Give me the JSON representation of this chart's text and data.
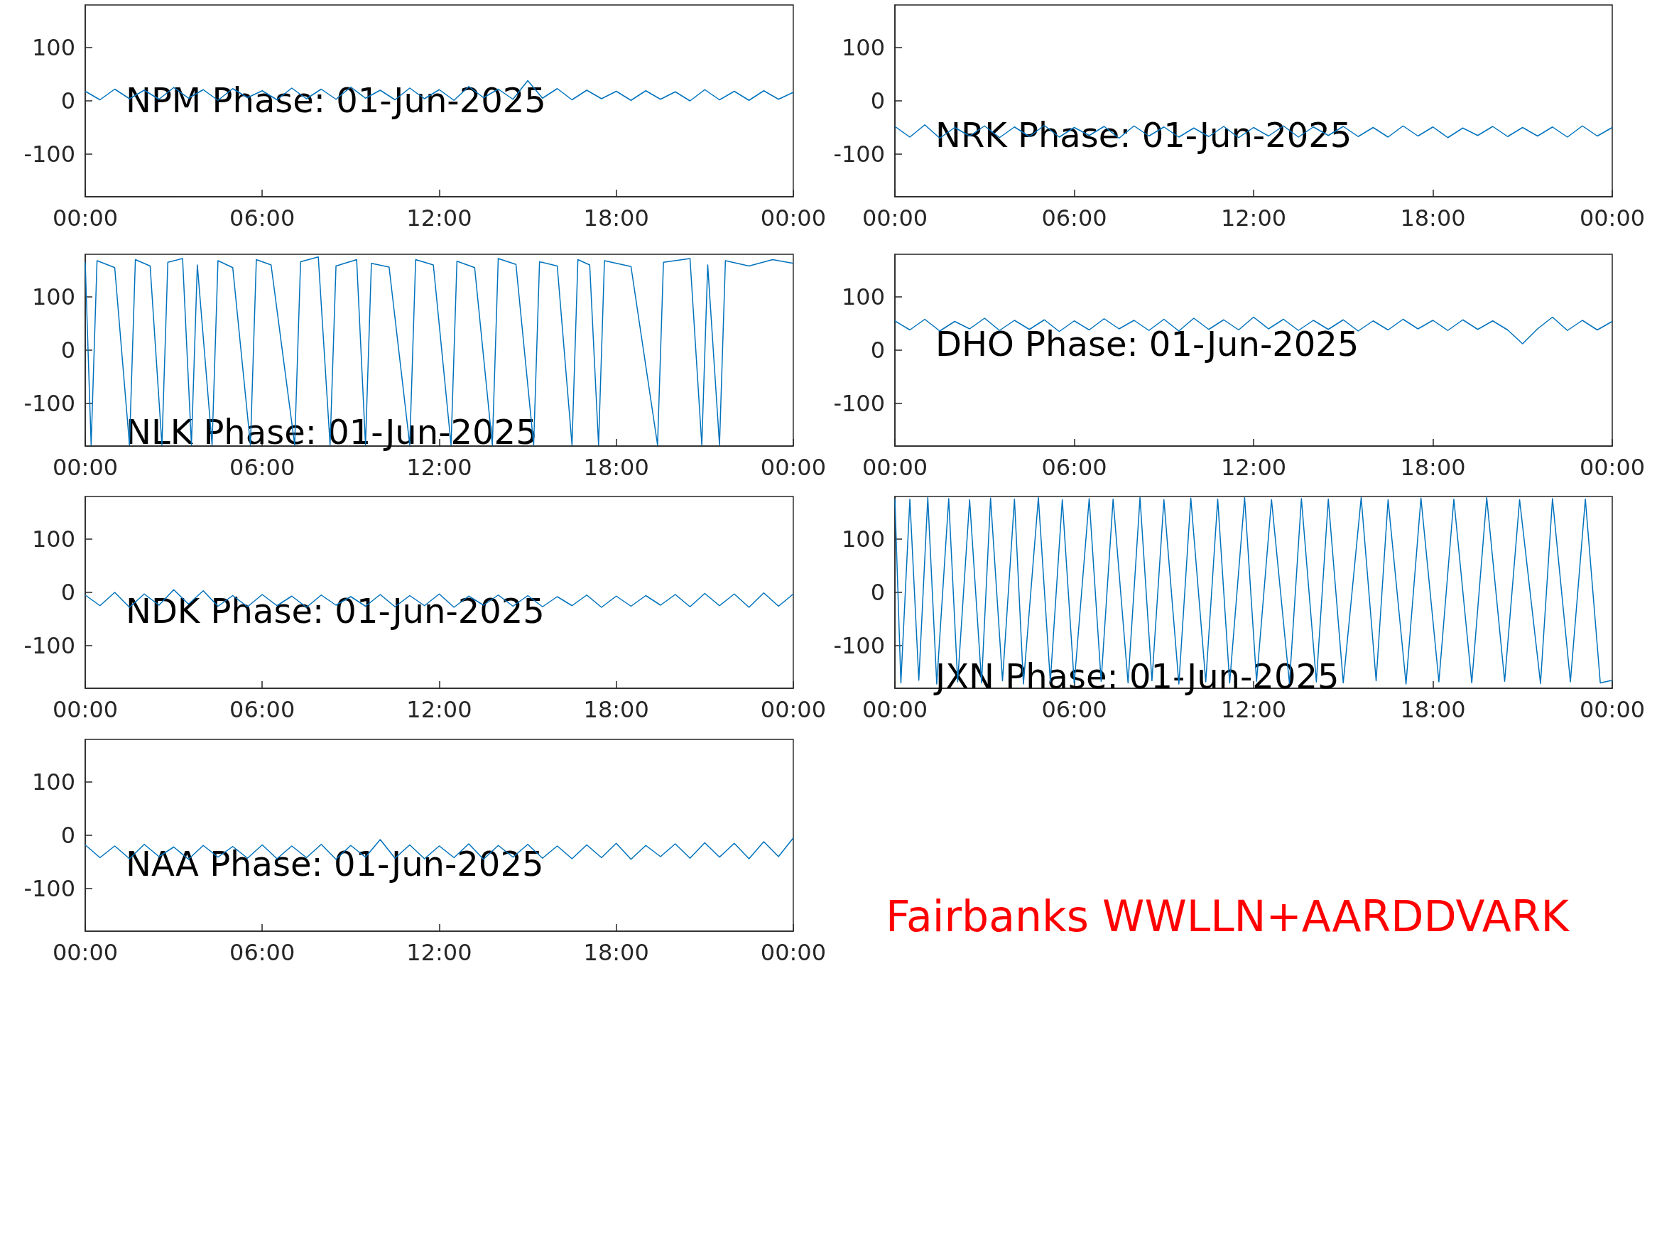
{
  "chart_data": [
    {
      "type": "line",
      "title": "NPM Phase: 01-Jun-2025",
      "marker": "none",
      "line_style": "solid",
      "grid": false,
      "xlim": [
        0,
        24
      ],
      "xticks": [
        {
          "value": 0,
          "label": "00:00"
        },
        {
          "value": 6,
          "label": "06:00"
        },
        {
          "value": 12,
          "label": "12:00"
        },
        {
          "value": 18,
          "label": "18:00"
        },
        {
          "value": 24,
          "label": "00:00"
        }
      ],
      "ylim": [
        -180,
        180
      ],
      "yticks": [
        -100,
        0,
        100
      ],
      "x": [
        0,
        0.5,
        1,
        1.5,
        2,
        2.5,
        3,
        3.5,
        4,
        4.5,
        5,
        5.5,
        6,
        6.5,
        7,
        7.5,
        8,
        8.5,
        9,
        9.5,
        10,
        10.5,
        11,
        11.5,
        12,
        12.5,
        13,
        13.5,
        14,
        14.5,
        15,
        15.5,
        16,
        16.5,
        17,
        17.5,
        18,
        18.5,
        19,
        19.5,
        20,
        20.5,
        21,
        21.5,
        22,
        22.5,
        23,
        23.5,
        24
      ],
      "series": [
        {
          "color": "#0072bd",
          "values": [
            18,
            2,
            22,
            4,
            20,
            3,
            25,
            5,
            21,
            1,
            23,
            6,
            19,
            2,
            24,
            4,
            22,
            3,
            26,
            5,
            20,
            2,
            24,
            4,
            21,
            1,
            27,
            6,
            22,
            3,
            38,
            5,
            23,
            2,
            20,
            4,
            18,
            1,
            19,
            3,
            17,
            0,
            21,
            2,
            18,
            1,
            19,
            3,
            16
          ]
        }
      ]
    },
    {
      "type": "line",
      "title": "NRK Phase: 01-Jun-2025",
      "marker": "none",
      "line_style": "solid",
      "grid": false,
      "xlim": [
        0,
        24
      ],
      "xticks": [
        {
          "value": 0,
          "label": "00:00"
        },
        {
          "value": 6,
          "label": "06:00"
        },
        {
          "value": 12,
          "label": "12:00"
        },
        {
          "value": 18,
          "label": "18:00"
        },
        {
          "value": 24,
          "label": "00:00"
        }
      ],
      "ylim": [
        -180,
        180
      ],
      "yticks": [
        -100,
        0,
        100
      ],
      "x": [
        0,
        0.5,
        1,
        1.5,
        2,
        2.5,
        3,
        3.5,
        4,
        4.5,
        5,
        5.5,
        6,
        6.5,
        7,
        7.5,
        8,
        8.5,
        9,
        9.5,
        10,
        10.5,
        11,
        11.5,
        12,
        12.5,
        13,
        13.5,
        14,
        14.5,
        15,
        15.5,
        16,
        16.5,
        17,
        17.5,
        18,
        18.5,
        19,
        19.5,
        20,
        20.5,
        21,
        21.5,
        22,
        22.5,
        23,
        23.5,
        24
      ],
      "series": [
        {
          "color": "#0072bd",
          "values": [
            -48,
            -68,
            -45,
            -70,
            -50,
            -66,
            -47,
            -69,
            -49,
            -67,
            -46,
            -68,
            -50,
            -65,
            -48,
            -70,
            -47,
            -66,
            -49,
            -68,
            -51,
            -67,
            -48,
            -69,
            -50,
            -66,
            -47,
            -68,
            -49,
            -65,
            -48,
            -67,
            -50,
            -68,
            -47,
            -66,
            -49,
            -69,
            -51,
            -65,
            -48,
            -67,
            -50,
            -66,
            -49,
            -68,
            -47,
            -66,
            -50
          ]
        }
      ]
    },
    {
      "type": "line",
      "title": "NLK Phase: 01-Jun-2025",
      "marker": "none",
      "line_style": "solid",
      "grid": false,
      "xlim": [
        0,
        24
      ],
      "xticks": [
        {
          "value": 0,
          "label": "00:00"
        },
        {
          "value": 6,
          "label": "06:00"
        },
        {
          "value": 12,
          "label": "12:00"
        },
        {
          "value": 18,
          "label": "18:00"
        },
        {
          "value": 24,
          "label": "00:00"
        }
      ],
      "ylim": [
        -180,
        180
      ],
      "yticks": [
        -100,
        0,
        100
      ],
      "x": [
        0,
        0.2,
        0.4,
        1,
        1.5,
        1.7,
        2.2,
        2.6,
        2.8,
        3.3,
        3.6,
        3.8,
        4.3,
        4.5,
        5,
        5.6,
        5.8,
        6.3,
        7.1,
        7.3,
        7.9,
        8.3,
        8.5,
        9.2,
        9.5,
        9.7,
        10.3,
        11,
        11.2,
        11.8,
        12.4,
        12.6,
        13.2,
        13.8,
        14,
        14.6,
        15.2,
        15.4,
        16,
        16.5,
        16.7,
        17.1,
        17.4,
        17.6,
        18.5,
        19.4,
        19.6,
        20.5,
        20.9,
        21.1,
        21.5,
        21.7,
        22.5,
        23.3,
        24
      ],
      "series": [
        {
          "color": "#0072bd",
          "values": [
            165,
            -178,
            168,
            155,
            -178,
            170,
            158,
            -178,
            165,
            172,
            -178,
            160,
            -178,
            168,
            155,
            -178,
            170,
            160,
            -178,
            166,
            175,
            -178,
            158,
            170,
            -178,
            163,
            156,
            -178,
            170,
            160,
            -178,
            167,
            155,
            -178,
            172,
            161,
            -178,
            166,
            158,
            -178,
            170,
            160,
            -178,
            168,
            157,
            -178,
            165,
            172,
            -178,
            160,
            -178,
            168,
            158,
            170,
            163
          ]
        }
      ]
    },
    {
      "type": "line",
      "title": "DHO Phase: 01-Jun-2025",
      "marker": "none",
      "line_style": "solid",
      "grid": false,
      "xlim": [
        0,
        24
      ],
      "xticks": [
        {
          "value": 0,
          "label": "00:00"
        },
        {
          "value": 6,
          "label": "06:00"
        },
        {
          "value": 12,
          "label": "12:00"
        },
        {
          "value": 18,
          "label": "18:00"
        },
        {
          "value": 24,
          "label": "00:00"
        }
      ],
      "ylim": [
        -180,
        180
      ],
      "yticks": [
        -100,
        0,
        100
      ],
      "x": [
        0,
        0.5,
        1,
        1.5,
        2,
        2.5,
        3,
        3.5,
        4,
        4.5,
        5,
        5.5,
        6,
        6.5,
        7,
        7.5,
        8,
        8.5,
        9,
        9.5,
        10,
        10.5,
        11,
        11.5,
        12,
        12.5,
        13,
        13.5,
        14,
        14.5,
        15,
        15.5,
        16,
        16.5,
        17,
        17.5,
        18,
        18.5,
        19,
        19.5,
        20,
        20.5,
        21,
        21.5,
        22,
        22.5,
        23,
        23.5,
        24
      ],
      "series": [
        {
          "color": "#0072bd",
          "values": [
            55,
            38,
            58,
            36,
            54,
            40,
            60,
            37,
            56,
            39,
            57,
            35,
            55,
            38,
            59,
            40,
            56,
            37,
            58,
            36,
            60,
            39,
            57,
            38,
            62,
            40,
            58,
            37,
            56,
            39,
            57,
            36,
            55,
            38,
            58,
            40,
            56,
            37,
            57,
            39,
            55,
            38,
            12,
            40,
            62,
            37,
            56,
            38,
            54
          ]
        }
      ]
    },
    {
      "type": "line",
      "title": "NDK Phase: 01-Jun-2025",
      "marker": "none",
      "line_style": "solid",
      "grid": false,
      "xlim": [
        0,
        24
      ],
      "xticks": [
        {
          "value": 0,
          "label": "00:00"
        },
        {
          "value": 6,
          "label": "06:00"
        },
        {
          "value": 12,
          "label": "12:00"
        },
        {
          "value": 18,
          "label": "18:00"
        },
        {
          "value": 24,
          "label": "00:00"
        }
      ],
      "ylim": [
        -180,
        180
      ],
      "yticks": [
        -100,
        0,
        100
      ],
      "x": [
        0,
        0.5,
        1,
        1.5,
        2,
        2.5,
        3,
        3.5,
        4,
        4.5,
        5,
        5.5,
        6,
        6.5,
        7,
        7.5,
        8,
        8.5,
        9,
        9.5,
        10,
        10.5,
        11,
        11.5,
        12,
        12.5,
        13,
        13.5,
        14,
        14.5,
        15,
        15.5,
        16,
        16.5,
        17,
        17.5,
        18,
        18.5,
        19,
        19.5,
        20,
        20.5,
        21,
        21.5,
        22,
        22.5,
        23,
        23.5,
        24
      ],
      "series": [
        {
          "color": "#0072bd",
          "values": [
            -5,
            -25,
            0,
            -28,
            -3,
            -24,
            5,
            -22,
            3,
            -26,
            -6,
            -27,
            -4,
            -25,
            -7,
            -28,
            -5,
            -24,
            -8,
            -26,
            -4,
            -27,
            -6,
            -25,
            -3,
            -28,
            -7,
            -24,
            -5,
            -26,
            -6,
            -27,
            -8,
            -25,
            -5,
            -28,
            -7,
            -26,
            -6,
            -24,
            -4,
            -27,
            -2,
            -25,
            -3,
            -28,
            -1,
            -26,
            -3
          ]
        }
      ]
    },
    {
      "type": "line",
      "title": "JXN Phase: 01-Jun-2025",
      "marker": "none",
      "line_style": "solid",
      "grid": false,
      "xlim": [
        0,
        24
      ],
      "xticks": [
        {
          "value": 0,
          "label": "00:00"
        },
        {
          "value": 6,
          "label": "06:00"
        },
        {
          "value": 12,
          "label": "12:00"
        },
        {
          "value": 18,
          "label": "18:00"
        },
        {
          "value": 24,
          "label": "00:00"
        }
      ],
      "ylim": [
        -180,
        180
      ],
      "yticks": [
        -100,
        0,
        100
      ],
      "x": [
        0,
        0.2,
        0.5,
        0.8,
        1.1,
        1.4,
        1.8,
        2.1,
        2.5,
        2.9,
        3.2,
        3.6,
        4,
        4.3,
        4.8,
        5.2,
        5.6,
        6,
        6.5,
        6.9,
        7.3,
        7.8,
        8.2,
        8.6,
        9,
        9.5,
        9.9,
        10.4,
        10.8,
        11.2,
        11.7,
        12.1,
        12.6,
        13.2,
        13.6,
        14.1,
        14.5,
        15,
        15.6,
        16.1,
        16.5,
        17.1,
        17.6,
        18.2,
        18.7,
        19.3,
        19.8,
        20.4,
        20.9,
        21.6,
        22,
        22.6,
        23.1,
        23.6,
        24
      ],
      "series": [
        {
          "color": "#0072bd",
          "values": [
            175,
            -170,
            175,
            -165,
            178,
            -172,
            176,
            -168,
            174,
            -170,
            177,
            -166,
            175,
            -172,
            178,
            -168,
            174,
            -171,
            176,
            -167,
            175,
            -170,
            178,
            -166,
            174,
            -172,
            177,
            -168,
            175,
            -170,
            178,
            -167,
            174,
            -171,
            176,
            -168,
            175,
            -170,
            178,
            -166,
            174,
            -172,
            177,
            -168,
            175,
            -170,
            178,
            -167,
            174,
            -171,
            176,
            -168,
            175,
            -170,
            -165
          ]
        }
      ]
    },
    {
      "type": "line",
      "title": "NAA Phase: 01-Jun-2025",
      "marker": "none",
      "line_style": "solid",
      "grid": false,
      "xlim": [
        0,
        24
      ],
      "xticks": [
        {
          "value": 0,
          "label": "00:00"
        },
        {
          "value": 6,
          "label": "06:00"
        },
        {
          "value": 12,
          "label": "12:00"
        },
        {
          "value": 18,
          "label": "18:00"
        },
        {
          "value": 24,
          "label": "00:00"
        }
      ],
      "ylim": [
        -180,
        180
      ],
      "yticks": [
        -100,
        0,
        100
      ],
      "x": [
        0,
        0.5,
        1,
        1.5,
        2,
        2.5,
        3,
        3.5,
        4,
        4.5,
        5,
        5.5,
        6,
        6.5,
        7,
        7.5,
        8,
        8.5,
        9,
        9.5,
        10,
        10.5,
        11,
        11.5,
        12,
        12.5,
        13,
        13.5,
        14,
        14.5,
        15,
        15.5,
        16,
        16.5,
        17,
        17.5,
        18,
        18.5,
        19,
        19.5,
        20,
        20.5,
        21,
        21.5,
        22,
        22.5,
        23,
        23.5,
        24
      ],
      "series": [
        {
          "color": "#0072bd",
          "values": [
            -18,
            -42,
            -20,
            -44,
            -17,
            -40,
            -22,
            -45,
            -19,
            -41,
            -21,
            -43,
            -18,
            -44,
            -20,
            -42,
            -17,
            -45,
            -19,
            -41,
            -8,
            -43,
            -18,
            -44,
            -20,
            -42,
            -16,
            -45,
            -19,
            -41,
            -17,
            -43,
            -20,
            -44,
            -18,
            -42,
            -15,
            -45,
            -19,
            -40,
            -16,
            -43,
            -14,
            -41,
            -15,
            -44,
            -12,
            -40,
            -5
          ]
        }
      ]
    },
    {
      "type": "other",
      "annotations": [
        "Fairbanks WWLLN+AARDDVARK"
      ]
    }
  ]
}
